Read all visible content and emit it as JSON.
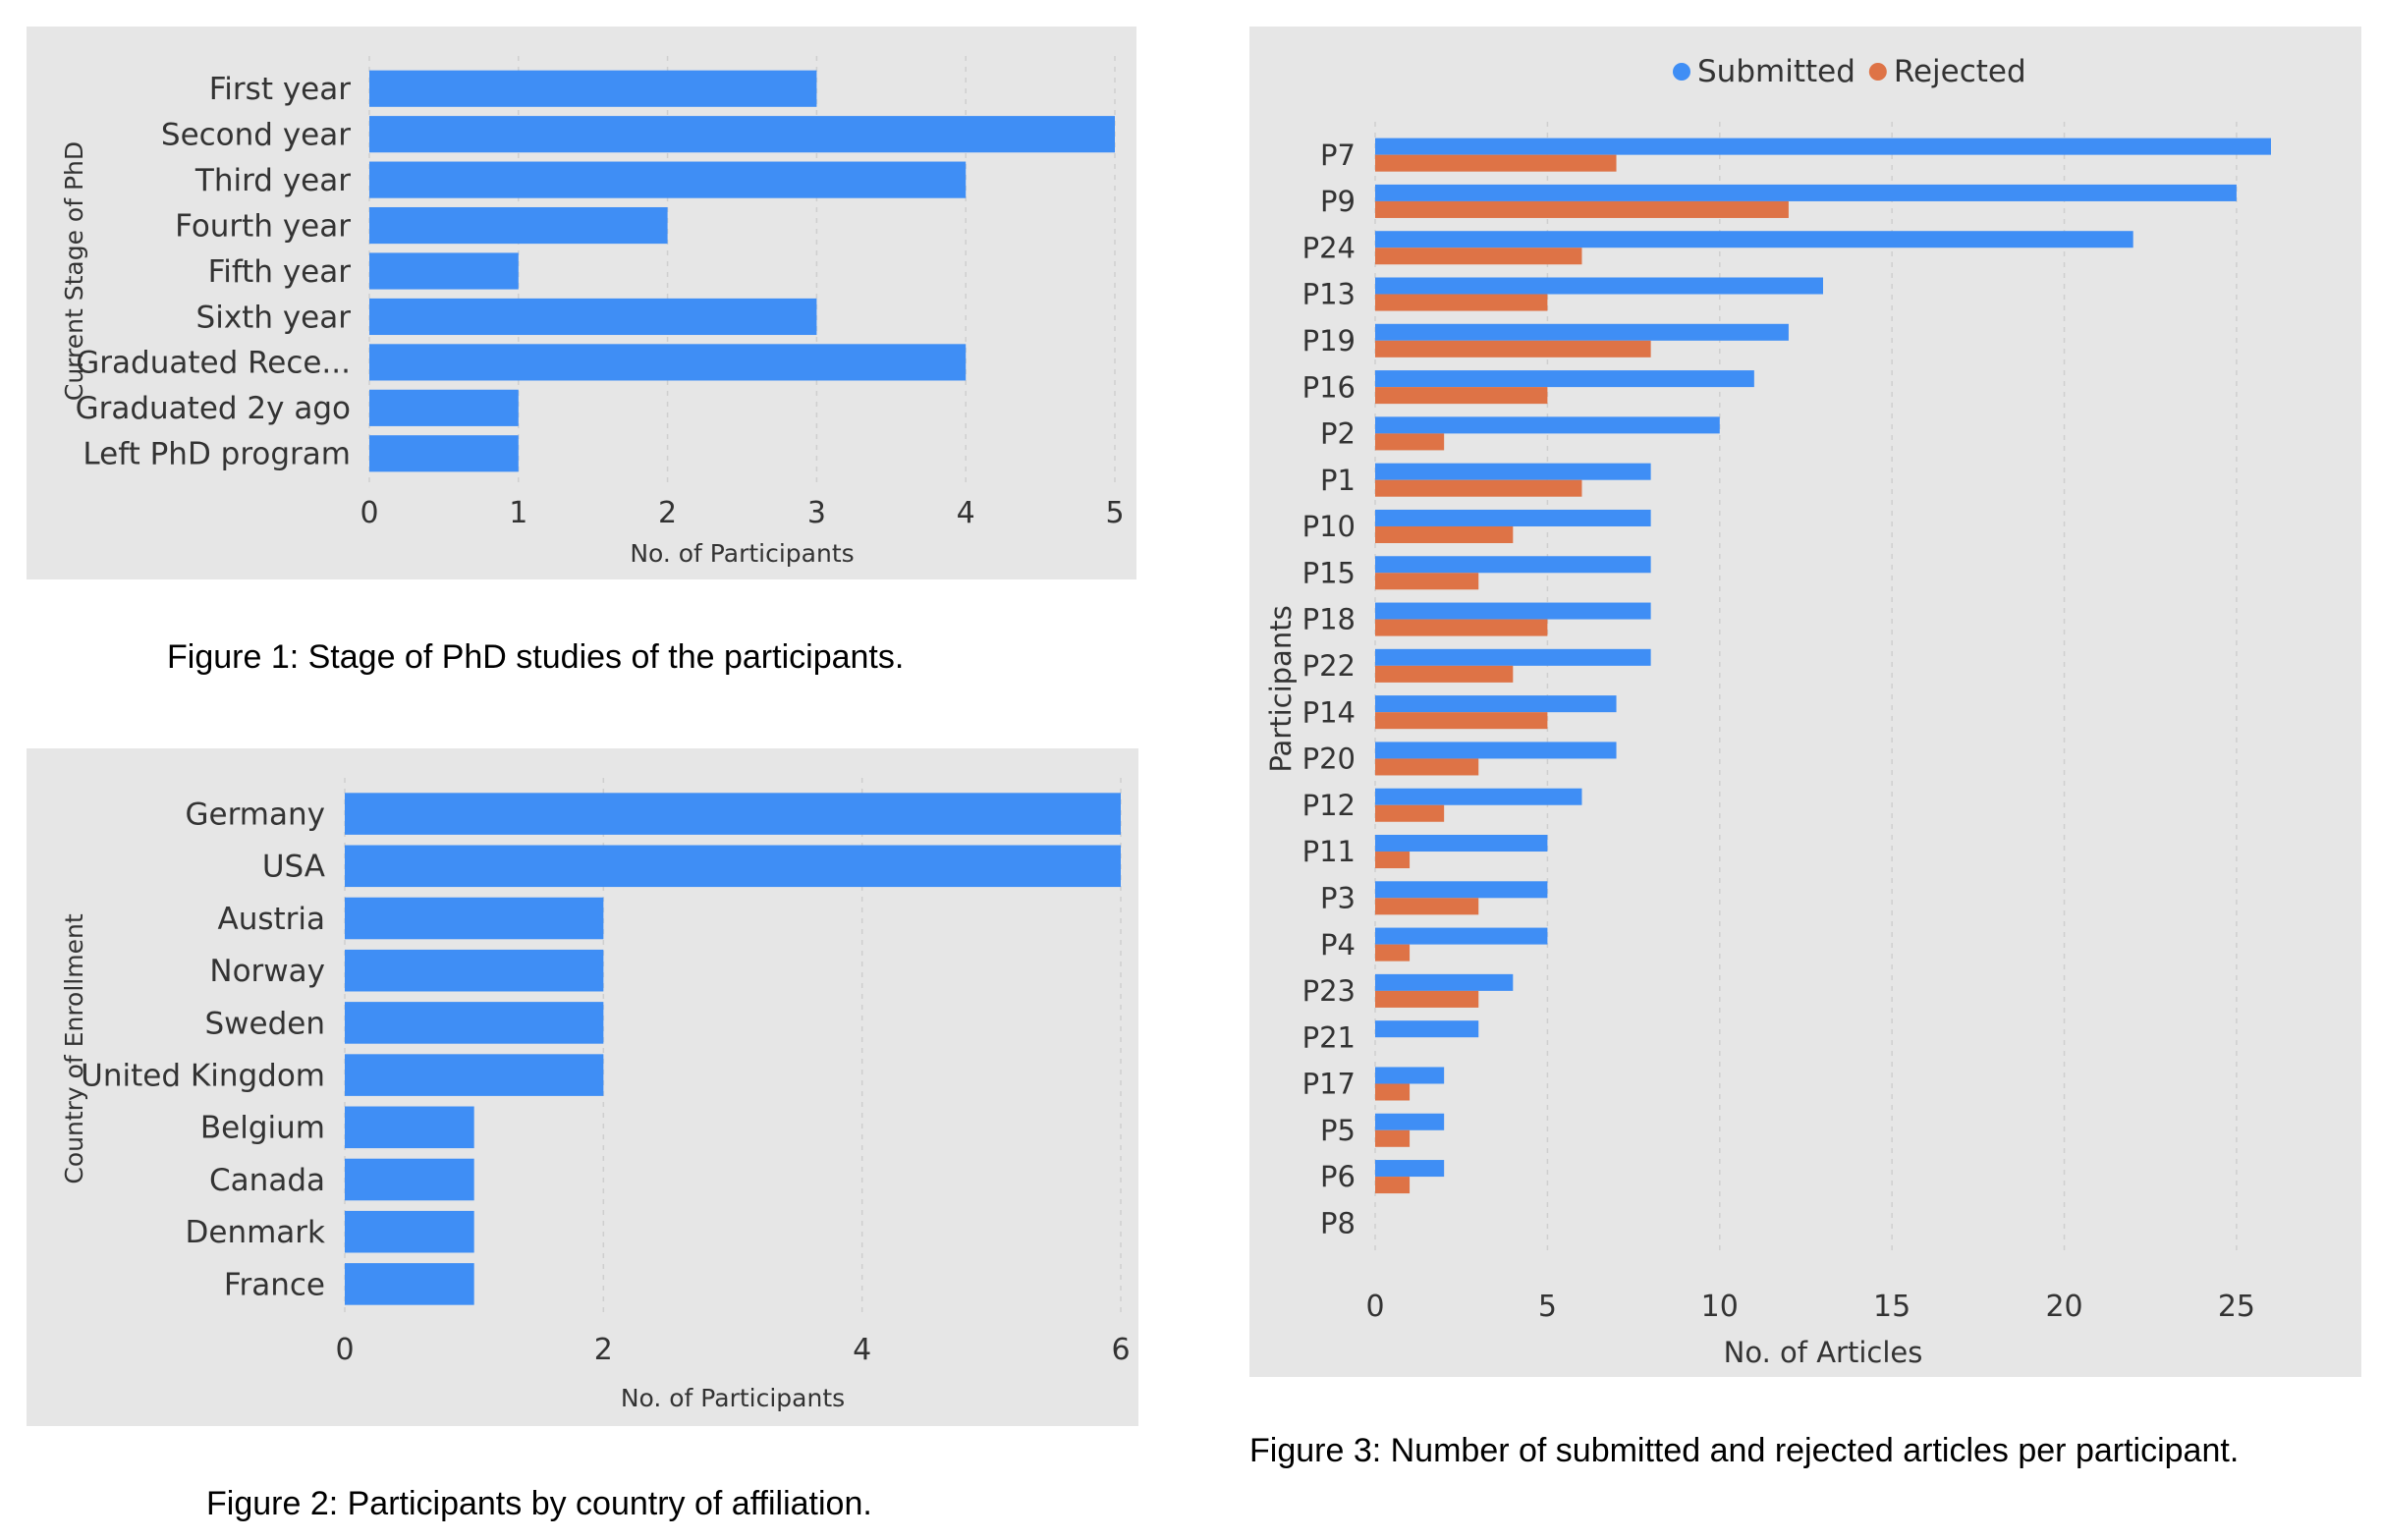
{
  "colors": {
    "submitted": "#3f8ef5",
    "rejected": "#de7346",
    "panel": "#e6e6e6"
  },
  "captions": {
    "fig1": "Figure 1: Stage of PhD studies of the participants.",
    "fig2": "Figure 2: Participants by country of affiliation.",
    "fig3": "Figure 3: Number of submitted and rejected articles per participant."
  },
  "chart_data": [
    {
      "type": "bar",
      "orientation": "horizontal",
      "categories": [
        "First year",
        "Second year",
        "Third year",
        "Fourth year",
        "Fifth year",
        "Sixth year",
        "Graduated Rece...",
        "Graduated 2y ago",
        "Left PhD program"
      ],
      "values": [
        3,
        5,
        4,
        2,
        1,
        3,
        4,
        1,
        1
      ],
      "xlabel": "No. of Participants",
      "ylabel": "Current Stage of PhD",
      "xlim": [
        0,
        5
      ],
      "xticks": [
        "0",
        "1",
        "2",
        "3",
        "4",
        "5"
      ],
      "grid": true
    },
    {
      "type": "bar",
      "orientation": "horizontal",
      "categories": [
        "Germany",
        "USA",
        "Austria",
        "Norway",
        "Sweden",
        "United Kingdom",
        "Belgium",
        "Canada",
        "Denmark",
        "France"
      ],
      "values": [
        6,
        6,
        2,
        2,
        2,
        2,
        1,
        1,
        1,
        1
      ],
      "xlabel": "No. of Participants",
      "ylabel": "Country of Enrollment",
      "xlim": [
        0,
        6
      ],
      "xticks": [
        "0",
        "2",
        "4",
        "6"
      ],
      "grid": true
    },
    {
      "type": "bar",
      "orientation": "horizontal",
      "categories": [
        "P7",
        "P9",
        "P24",
        "P13",
        "P19",
        "P16",
        "P2",
        "P1",
        "P10",
        "P15",
        "P18",
        "P22",
        "P14",
        "P20",
        "P12",
        "P11",
        "P3",
        "P4",
        "P23",
        "P21",
        "P17",
        "P5",
        "P6",
        "P8"
      ],
      "series": [
        {
          "name": "Submitted",
          "values": [
            26,
            25,
            22,
            13,
            12,
            11,
            10,
            8,
            8,
            8,
            8,
            8,
            7,
            7,
            6,
            5,
            5,
            5,
            4,
            3,
            2,
            2,
            2,
            0
          ]
        },
        {
          "name": "Rejected",
          "values": [
            7,
            12,
            6,
            5,
            8,
            5,
            2,
            6,
            4,
            3,
            5,
            4,
            5,
            3,
            2,
            1,
            3,
            1,
            3,
            0,
            1,
            1,
            1,
            0
          ]
        }
      ],
      "xlabel": "No. of Articles",
      "ylabel": "Participants",
      "xlim": [
        0,
        26
      ],
      "xticks": [
        "0",
        "5",
        "10",
        "15",
        "20",
        "25"
      ],
      "legend": "top-center",
      "grid": true
    }
  ]
}
